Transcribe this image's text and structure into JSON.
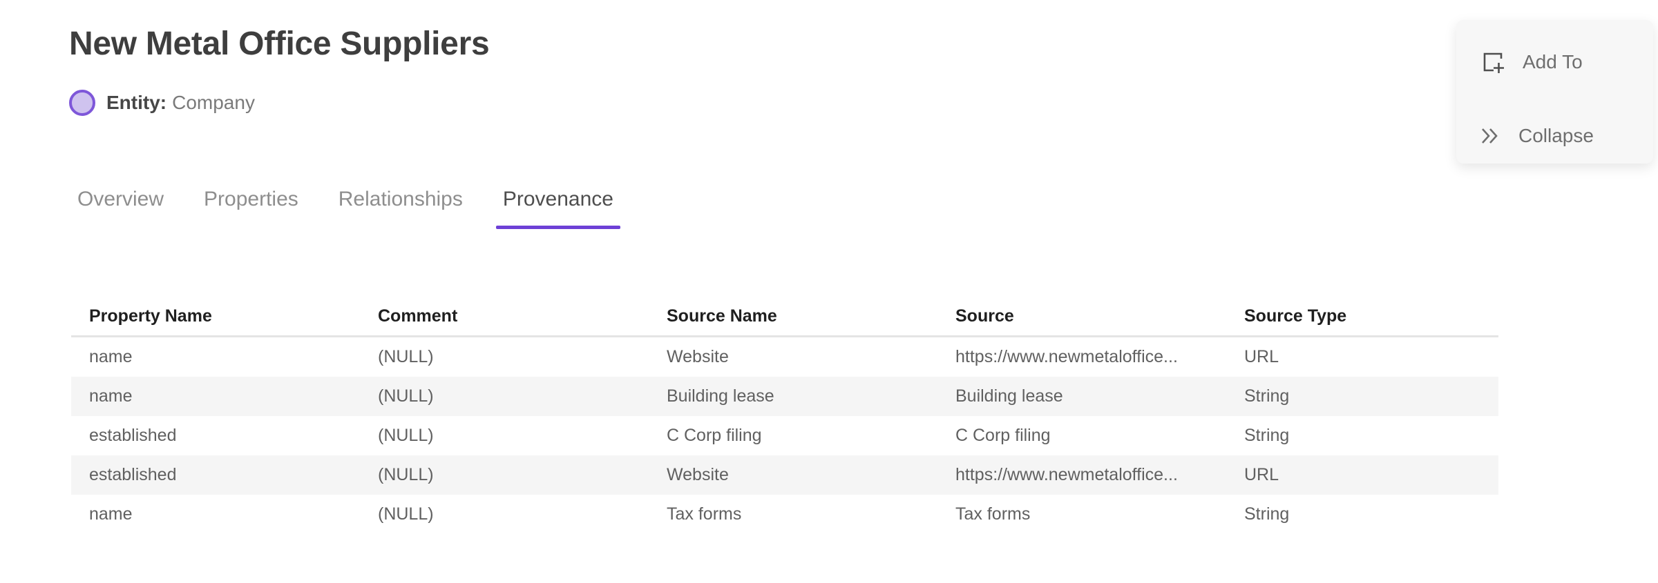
{
  "page": {
    "title": "New Metal Office Suppliers",
    "entity_label": "Entity:",
    "entity_type": "Company"
  },
  "actions": {
    "add_to_label": "Add To",
    "collapse_label": "Collapse",
    "add_to_icon": "add-to-frame-icon",
    "collapse_icon": "double-chevron-right-icon"
  },
  "tabs": [
    {
      "label": "Overview",
      "active": false
    },
    {
      "label": "Properties",
      "active": false
    },
    {
      "label": "Relationships",
      "active": false
    },
    {
      "label": "Provenance",
      "active": true
    }
  ],
  "table": {
    "columns": [
      "Property Name",
      "Comment",
      "Source Name",
      "Source",
      "Source Type"
    ],
    "rows": [
      [
        "name",
        "(NULL)",
        "Website",
        "https://www.newmetaloffice...",
        "URL"
      ],
      [
        "name",
        "(NULL)",
        "Building lease",
        "Building lease",
        "String"
      ],
      [
        "established",
        "(NULL)",
        "C Corp filing",
        "C Corp filing",
        "String"
      ],
      [
        "established",
        "(NULL)",
        "Website",
        "https://www.newmetaloffice...",
        "URL"
      ],
      [
        "name",
        "(NULL)",
        "Tax forms",
        "Tax forms",
        "String"
      ]
    ]
  },
  "colors": {
    "accent_purple": "#6d40d6",
    "entity_circle_fill": "#cfc3ef",
    "entity_circle_border": "#7e57d9",
    "row_stripe": "#f5f5f5",
    "icon_dark": "#4f4f4f",
    "icon_gray": "#6e6e6e"
  }
}
